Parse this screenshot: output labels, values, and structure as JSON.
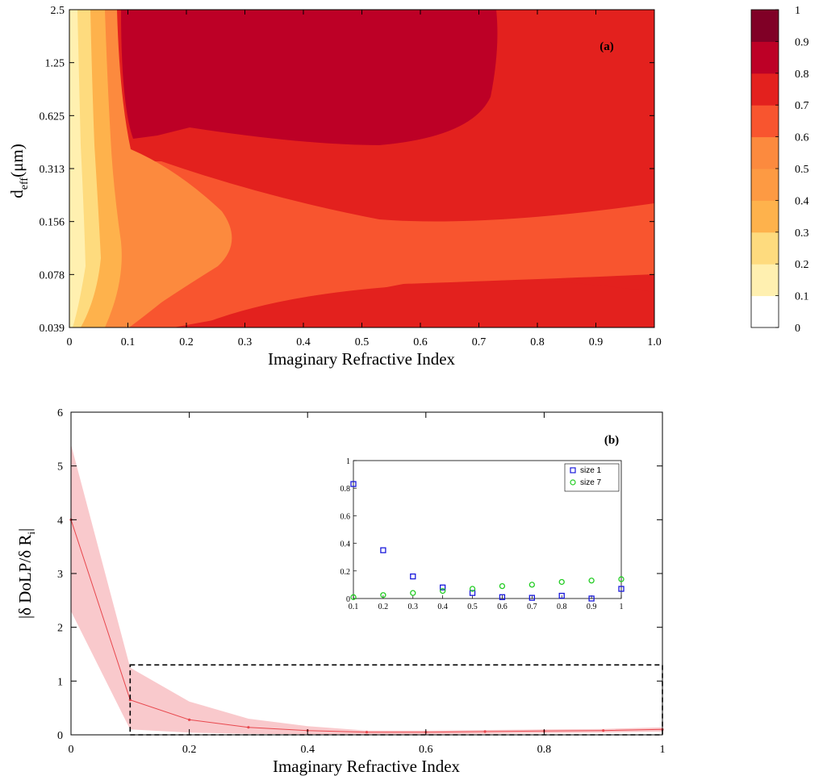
{
  "chart_data": [
    {
      "type": "heatmap",
      "panel_label": "(a)",
      "xlabel": "Imaginary Refractive Index",
      "ylabel_main": "d",
      "ylabel_sub": "eff",
      "ylabel_unit": "(μm)",
      "x_ticks": [
        "0",
        "0.1",
        "0.2",
        "0.3",
        "0.4",
        "0.5",
        "0.6",
        "0.7",
        "0.8",
        "0.9",
        "1.0"
      ],
      "y_ticks": [
        "0.039",
        "0.078",
        "0.156",
        "0.313",
        "0.625",
        "1.25",
        "2.5"
      ],
      "xlim": [
        0,
        1.0
      ],
      "y_scale": "log2",
      "colorbar": {
        "levels": [
          0,
          0.1,
          0.2,
          0.3,
          0.4,
          0.5,
          0.6,
          0.7,
          0.8,
          0.9,
          1
        ],
        "labels": [
          "0",
          "0.1",
          "0.2",
          "0.3",
          "0.4",
          "0.5",
          "0.6",
          "0.7",
          "0.8",
          "0.9",
          "1"
        ],
        "colors": [
          "#ffffff",
          "#fff0b0",
          "#fedb7e",
          "#feb24c",
          "#fd9a43",
          "#fc8a3e",
          "#f8552f",
          "#e3211e",
          "#bd0026",
          "#800026"
        ]
      },
      "color_regions_ordered_by_level": [
        0.4,
        0.5,
        0.6,
        0.7,
        0.8
      ]
    },
    {
      "type": "line",
      "panel_label": "(b)",
      "xlabel": "Imaginary Refractive Index",
      "ylabel": "|δ DoLP/δ R_i|",
      "ylabel_text": "|δ DoLP/δ R",
      "ylabel_sub": "i",
      "ylabel_close": "|",
      "x_ticks": [
        "0",
        "0.2",
        "0.4",
        "0.6",
        "0.8",
        "1"
      ],
      "y_ticks": [
        "0",
        "1",
        "2",
        "3",
        "4",
        "5",
        "6"
      ],
      "xlim": [
        0,
        1
      ],
      "ylim": [
        0,
        6
      ],
      "grid": false,
      "series": [
        {
          "x": [
            0,
            0.1,
            0.2,
            0.3,
            0.4,
            0.5,
            0.6,
            0.7,
            0.8,
            0.9,
            1.0
          ],
          "values": [
            4.0,
            0.65,
            0.28,
            0.14,
            0.08,
            0.05,
            0.05,
            0.06,
            0.07,
            0.08,
            0.1
          ],
          "upper": [
            5.4,
            1.25,
            0.62,
            0.3,
            0.16,
            0.08,
            0.08,
            0.09,
            0.1,
            0.11,
            0.14
          ],
          "lower": [
            2.3,
            0.1,
            0.04,
            0.02,
            0.01,
            0.01,
            0.01,
            0.02,
            0.03,
            0.04,
            0.06
          ],
          "color": "#e8474d",
          "band_color": "#f9c9cc"
        }
      ],
      "highlight_box": {
        "x": [
          0.1,
          1.0
        ],
        "y": [
          0,
          1.3
        ],
        "style": "dashed"
      },
      "inset": {
        "type": "scatter",
        "x_ticks": [
          "0.1",
          "0.2",
          "0.3",
          "0.4",
          "0.5",
          "0.6",
          "0.7",
          "0.8",
          "0.9",
          "1"
        ],
        "y_ticks": [
          "0",
          "0.2",
          "0.4",
          "0.6",
          "0.8",
          "1"
        ],
        "xlim": [
          0.1,
          1
        ],
        "ylim": [
          0,
          1
        ],
        "legend_position": "top-right",
        "series": [
          {
            "name": "size 1",
            "marker": "square",
            "color": "#1a1adb",
            "x": [
              0.1,
              0.2,
              0.3,
              0.4,
              0.5,
              0.6,
              0.7,
              0.8,
              0.9,
              1.0
            ],
            "values": [
              0.83,
              0.35,
              0.16,
              0.08,
              0.04,
              0.01,
              0.005,
              0.02,
              0.0,
              0.07
            ]
          },
          {
            "name": "size 7",
            "marker": "circle",
            "color": "#22cc22",
            "x": [
              0.1,
              0.2,
              0.3,
              0.4,
              0.5,
              0.6,
              0.7,
              0.8,
              0.9,
              1.0
            ],
            "values": [
              0.01,
              0.025,
              0.04,
              0.055,
              0.07,
              0.09,
              0.1,
              0.12,
              0.13,
              0.14
            ]
          }
        ]
      }
    }
  ]
}
